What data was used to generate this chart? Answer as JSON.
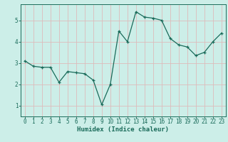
{
  "x": [
    0,
    1,
    2,
    3,
    4,
    5,
    6,
    7,
    8,
    9,
    10,
    11,
    12,
    13,
    14,
    15,
    16,
    17,
    18,
    19,
    20,
    21,
    22,
    23
  ],
  "y": [
    3.1,
    2.85,
    2.8,
    2.8,
    2.1,
    2.6,
    2.55,
    2.5,
    2.2,
    1.05,
    2.0,
    4.5,
    4.0,
    5.4,
    5.15,
    5.1,
    5.0,
    4.15,
    3.85,
    3.75,
    3.35,
    3.5,
    4.0,
    4.4
  ],
  "bg_color": "#cceee8",
  "line_color": "#1a6b5a",
  "marker_color": "#1a6b5a",
  "grid_color": "#ddbbbb",
  "axis_color": "#1a6b5a",
  "xlabel": "Humidex (Indice chaleur)",
  "yticks": [
    1,
    2,
    3,
    4,
    5
  ],
  "xticks": [
    0,
    1,
    2,
    3,
    4,
    5,
    6,
    7,
    8,
    9,
    10,
    11,
    12,
    13,
    14,
    15,
    16,
    17,
    18,
    19,
    20,
    21,
    22,
    23
  ],
  "ylim": [
    0.5,
    5.75
  ],
  "xlim": [
    -0.5,
    23.5
  ],
  "tick_fontsize": 5.5,
  "xlabel_fontsize": 6.5
}
